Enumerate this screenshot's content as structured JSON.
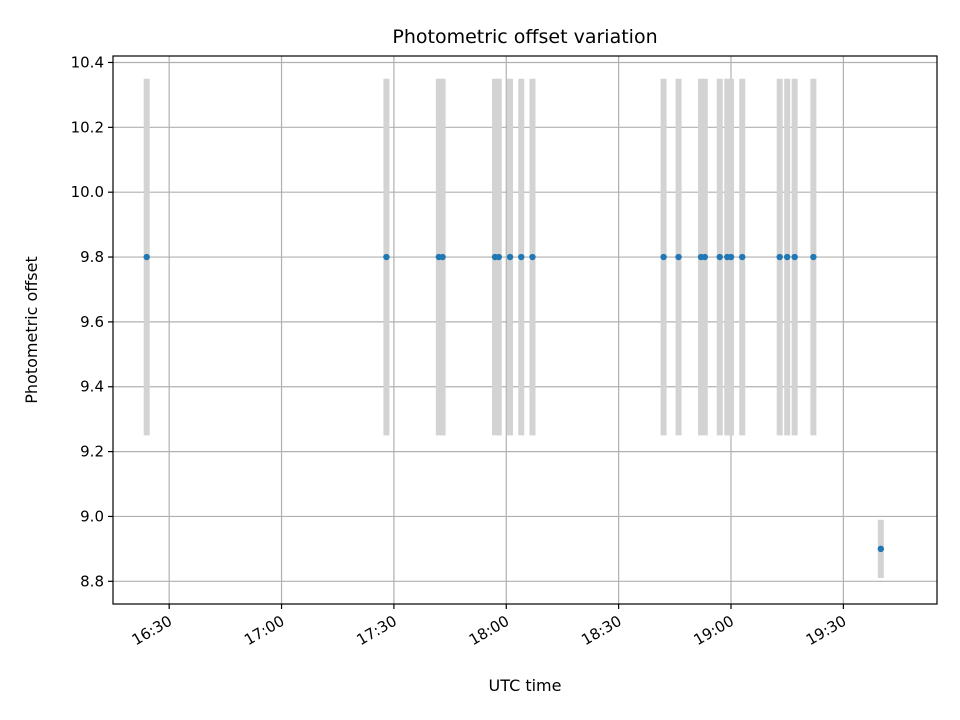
{
  "chart_data": {
    "type": "scatter",
    "title": "Photometric offset variation",
    "xlabel": "UTC time",
    "ylabel": "Photometric offset",
    "grid": true,
    "xlim": [
      "16:15",
      "19:55"
    ],
    "ylim": [
      8.73,
      10.42
    ],
    "x_ticks": [
      "16:30",
      "17:00",
      "17:30",
      "18:00",
      "18:30",
      "19:00",
      "19:30"
    ],
    "y_ticks": [
      8.8,
      9.0,
      9.2,
      9.4,
      9.6,
      9.8,
      10.0,
      10.2,
      10.4
    ],
    "y_tick_labels": [
      "8.8",
      "9.0",
      "9.2",
      "9.4",
      "9.6",
      "9.8",
      "10.0",
      "10.2",
      "10.4"
    ],
    "point_color": "#1f77b4",
    "errorbar_color": "#d3d3d3",
    "points": [
      {
        "t": "16:24",
        "y": 9.8,
        "err": 0.55
      },
      {
        "t": "17:28",
        "y": 9.8,
        "err": 0.55
      },
      {
        "t": "17:42",
        "y": 9.8,
        "err": 0.55
      },
      {
        "t": "17:43",
        "y": 9.8,
        "err": 0.55
      },
      {
        "t": "17:57",
        "y": 9.8,
        "err": 0.55
      },
      {
        "t": "17:58",
        "y": 9.8,
        "err": 0.55
      },
      {
        "t": "18:01",
        "y": 9.8,
        "err": 0.55
      },
      {
        "t": "18:04",
        "y": 9.8,
        "err": 0.55
      },
      {
        "t": "18:07",
        "y": 9.8,
        "err": 0.55
      },
      {
        "t": "18:42",
        "y": 9.8,
        "err": 0.55
      },
      {
        "t": "18:46",
        "y": 9.8,
        "err": 0.55
      },
      {
        "t": "18:52",
        "y": 9.8,
        "err": 0.55
      },
      {
        "t": "18:53",
        "y": 9.8,
        "err": 0.55
      },
      {
        "t": "18:57",
        "y": 9.8,
        "err": 0.55
      },
      {
        "t": "18:59",
        "y": 9.8,
        "err": 0.55
      },
      {
        "t": "19:00",
        "y": 9.8,
        "err": 0.55
      },
      {
        "t": "19:03",
        "y": 9.8,
        "err": 0.55
      },
      {
        "t": "19:13",
        "y": 9.8,
        "err": 0.55
      },
      {
        "t": "19:15",
        "y": 9.8,
        "err": 0.55
      },
      {
        "t": "19:17",
        "y": 9.8,
        "err": 0.55
      },
      {
        "t": "19:22",
        "y": 9.8,
        "err": 0.55
      },
      {
        "t": "19:40",
        "y": 8.9,
        "err": 0.09
      }
    ]
  }
}
